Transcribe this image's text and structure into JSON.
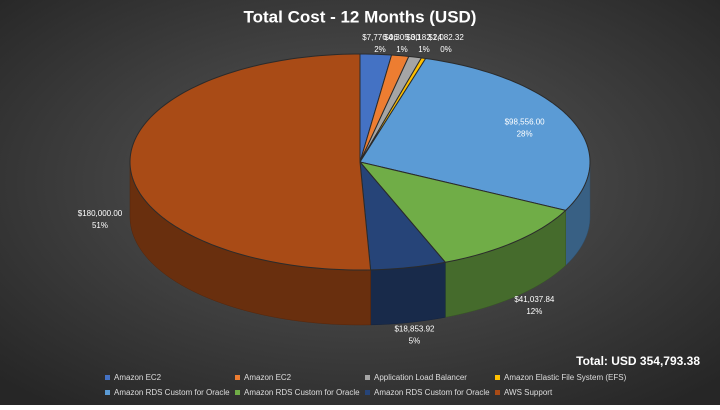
{
  "chart_data": {
    "type": "pie3d",
    "title": "Total Cost - 12 Months (USD)",
    "categories": [
      "Amazon EC2",
      "Amazon EC2",
      "Application Load Balancer",
      "Amazon Elastic File System (EFS)",
      "Amazon RDS Custom for Oracle",
      "Amazon RDS Custom for Oracle",
      "Amazon RDS Custom for Oracle",
      "AWS Support"
    ],
    "values": [
      7776.06,
      4305.0,
      3182.24,
      1082.32,
      98556.0,
      41037.84,
      18853.92,
      180000.0
    ],
    "value_labels": [
      "$7,776.06",
      "$4,305.00",
      "$3,182.24",
      "$1,082.32",
      "$98,556.00",
      "$41,037.84",
      "$18,853.92",
      "$180,000.00"
    ],
    "percent_labels": [
      "2%",
      "1%",
      "1%",
      "0%",
      "28%",
      "12%",
      "5%",
      "51%"
    ],
    "colors": [
      "#4472c4",
      "#ed7d31",
      "#a5a5a5",
      "#ffc000",
      "#5b9bd5",
      "#70ad47",
      "#264478",
      "#a94b16"
    ],
    "total_label": "Total: USD 354,793.38"
  }
}
